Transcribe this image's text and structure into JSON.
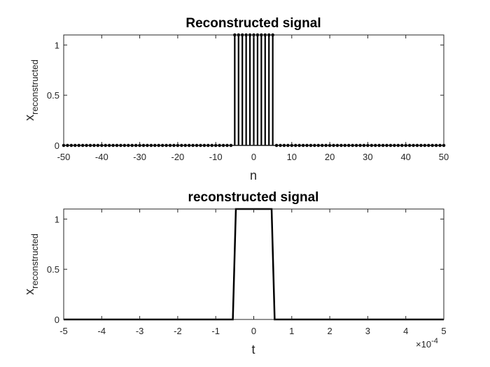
{
  "chart_data": [
    {
      "type": "stem",
      "title": "Reconstructed signal",
      "xlabel": "n",
      "ylabel": {
        "main": "x",
        "sub": "reconstructed"
      },
      "xlim": [
        -50,
        50
      ],
      "ylim": [
        0,
        1.1
      ],
      "x_ticks": [
        "-50",
        "-40",
        "-30",
        "-20",
        "-10",
        "0",
        "10",
        "20",
        "30",
        "40",
        "50"
      ],
      "y_ticks": [
        "0",
        "0.5",
        "1"
      ],
      "n_range": [
        -50,
        50
      ],
      "pulse": {
        "from": -5,
        "to": 5,
        "value": 1.1
      },
      "baseline_value": 0,
      "color": "#000000"
    },
    {
      "type": "line",
      "title": "reconstructed signal",
      "xlabel": "t",
      "ylabel": {
        "main": "x",
        "sub": "reconstructed"
      },
      "xlim": [
        -5,
        5
      ],
      "ylim": [
        0,
        1.1
      ],
      "x_ticks": [
        "-5",
        "-4",
        "-3",
        "-2",
        "-1",
        "0",
        "1",
        "2",
        "3",
        "4",
        "5"
      ],
      "y_ticks": [
        "0",
        "0.5",
        "1"
      ],
      "x_exponent_label": {
        "base": "×10",
        "exp": "-4"
      },
      "series": [
        {
          "x": [
            -5,
            -0.55,
            -0.47,
            0.47,
            0.55,
            5
          ],
          "y": [
            0,
            0,
            1.1,
            1.1,
            0,
            0
          ]
        }
      ],
      "color": "#000000"
    }
  ]
}
